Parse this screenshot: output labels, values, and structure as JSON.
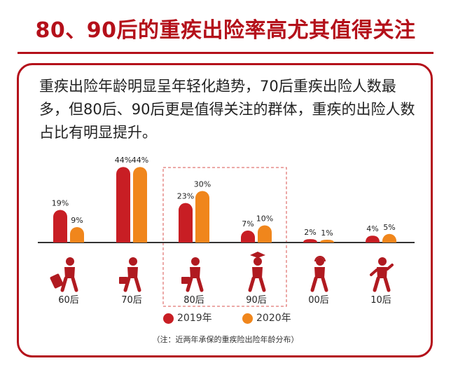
{
  "title": "80、90后的重疾出险率高尤其值得关注",
  "description": "重疾出险年龄明显呈年轻化趋势，70后重疾出险人数最多，但80后、90后更是值得关注的群体，重疾的出险人数占比有明显提升。",
  "note": "（注：近两年承保的重疾险出险年龄分布）",
  "colors": {
    "accent": "#b4101a",
    "series_2019": "#c81e24",
    "series_2020": "#f0861c"
  },
  "chart_data": {
    "type": "bar",
    "categories": [
      "60后",
      "70后",
      "80后",
      "90后",
      "00后",
      "10后"
    ],
    "series": [
      {
        "name": "2019年",
        "values": [
          19,
          44,
          23,
          7,
          2,
          4
        ],
        "labels": [
          "19%",
          "44%",
          "23%",
          "7%",
          "2%",
          "4%"
        ]
      },
      {
        "name": "2020年",
        "values": [
          9,
          44,
          30,
          10,
          1,
          5
        ],
        "labels": [
          "9%",
          "44%",
          "30%",
          "10%",
          "1%",
          "5%"
        ]
      }
    ],
    "legend": [
      "2019年",
      "2020年"
    ],
    "highlight": [
      "80后",
      "90后"
    ],
    "icons": [
      "traveler-with-suitcase-icon",
      "man-with-briefcase-icon",
      "walking-worker-icon",
      "graduate-icon",
      "person-with-headphones-icon",
      "running-child-icon"
    ]
  }
}
